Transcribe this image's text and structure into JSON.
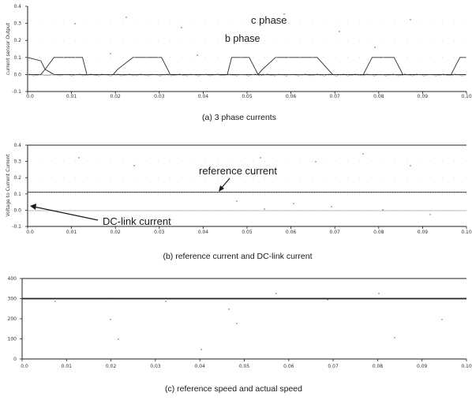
{
  "chart_data": [
    {
      "type": "line",
      "title": "(a) 3 phase currents",
      "xlabel": "",
      "ylabel": "current sensor Output",
      "xlim": [
        0,
        0.1
      ],
      "ylim": [
        -0.1,
        0.4
      ],
      "xticks": [
        "0.0",
        "0.01",
        "0.02",
        "0.03",
        "0.04",
        "0.05",
        "0.06",
        "0.07",
        "0.08",
        "0.09",
        "0.10"
      ],
      "yticks": [
        "-0.1",
        "0.0",
        "0.1",
        "0.2",
        "0.3",
        "0.4"
      ],
      "series": [
        {
          "name": "c phase",
          "x": [
            0.0,
            0.003,
            0.004,
            0.006,
            0.0125,
            0.0135,
            0.0175,
            0.0195,
            0.0205,
            0.024,
            0.026,
            0.027,
            0.0305,
            0.0325,
            0.0335,
            0.04,
            0.0455,
            0.0465,
            0.0505,
            0.0525,
            0.0535,
            0.0565,
            0.0585,
            0.0595,
            0.066,
            0.0695,
            0.0705,
            0.0765,
            0.0775,
            0.0785,
            0.0835,
            0.0845,
            0.0855,
            0.0965,
            0.0975,
            0.0985,
            0.1
          ],
          "y": [
            0.1,
            0.08,
            0.03,
            0.0,
            0.0,
            0.0,
            0.0,
            0.0,
            0.03,
            0.1,
            0.1,
            0.1,
            0.1,
            0.0,
            0.0,
            0.0,
            0.0,
            0.0,
            0.0,
            0.0,
            0.03,
            0.1,
            0.1,
            0.1,
            0.1,
            0.0,
            0.0,
            0.0,
            0.0,
            0.0,
            0.0,
            0.0,
            0.0,
            0.0,
            0.05,
            0.1,
            0.1
          ]
        },
        {
          "name": "b phase",
          "x": [
            0.0,
            0.003,
            0.004,
            0.006,
            0.0125,
            0.0135,
            0.0175,
            0.0195,
            0.0205,
            0.024,
            0.026,
            0.027,
            0.0305,
            0.0325,
            0.0335,
            0.04,
            0.0455,
            0.0465,
            0.0505,
            0.0525,
            0.0535,
            0.0565,
            0.0585,
            0.0595,
            0.066,
            0.0695,
            0.0705,
            0.0765,
            0.0775,
            0.0785,
            0.0835,
            0.0845,
            0.0855,
            0.0965,
            0.0975,
            0.0985,
            0.1
          ],
          "y": [
            0.0,
            0.0,
            0.03,
            0.1,
            0.1,
            0.0,
            0.0,
            0.0,
            0.0,
            0.0,
            0.0,
            0.0,
            0.0,
            0.0,
            0.0,
            0.0,
            0.0,
            0.1,
            0.1,
            0.0,
            0.0,
            0.0,
            0.0,
            0.0,
            0.0,
            0.0,
            0.0,
            0.0,
            0.05,
            0.1,
            0.1,
            0.05,
            0.0,
            0.0,
            0.0,
            0.0,
            0.0
          ]
        }
      ],
      "annotations": [
        "c phase",
        "b phase"
      ]
    },
    {
      "type": "line",
      "title": "(b) reference current and DC-link current",
      "xlabel": "",
      "ylabel": "Voltage to Current Current",
      "xlim": [
        0,
        0.1
      ],
      "ylim": [
        -0.1,
        0.4
      ],
      "xticks": [
        "0.0",
        "0.01",
        "0.02",
        "0.03",
        "0.04",
        "0.05",
        "0.06",
        "0.07",
        "0.08",
        "0.09",
        "0.10"
      ],
      "yticks": [
        "-0.1",
        "0.0",
        "0.1",
        "0.2",
        "0.3",
        "0.4"
      ],
      "series": [
        {
          "name": "reference current",
          "x": [
            0.0,
            0.1
          ],
          "y": [
            0.11,
            0.11
          ]
        },
        {
          "name": "DC-link current",
          "x": [
            0.0,
            0.1
          ],
          "y": [
            0.11,
            0.11
          ]
        }
      ],
      "annotations": [
        "reference current",
        "DC-link current"
      ]
    },
    {
      "type": "line",
      "title": "(c) reference speed and actual speed",
      "xlabel": "",
      "ylabel": "",
      "xlim": [
        0,
        0.1
      ],
      "ylim": [
        0,
        400
      ],
      "xticks": [
        "0.0",
        "0.01",
        "0.02",
        "0.03",
        "0.04",
        "0.05",
        "0.06",
        "0.07",
        "0.08",
        "0.09",
        "0.10"
      ],
      "yticks": [
        "0",
        "100",
        "200",
        "300",
        "400"
      ],
      "series": [
        {
          "name": "reference speed",
          "x": [
            0.0,
            0.1
          ],
          "y": [
            300,
            300
          ]
        },
        {
          "name": "actual speed",
          "x": [
            0.0,
            0.1
          ],
          "y": [
            300,
            300
          ]
        }
      ],
      "annotations": []
    }
  ]
}
